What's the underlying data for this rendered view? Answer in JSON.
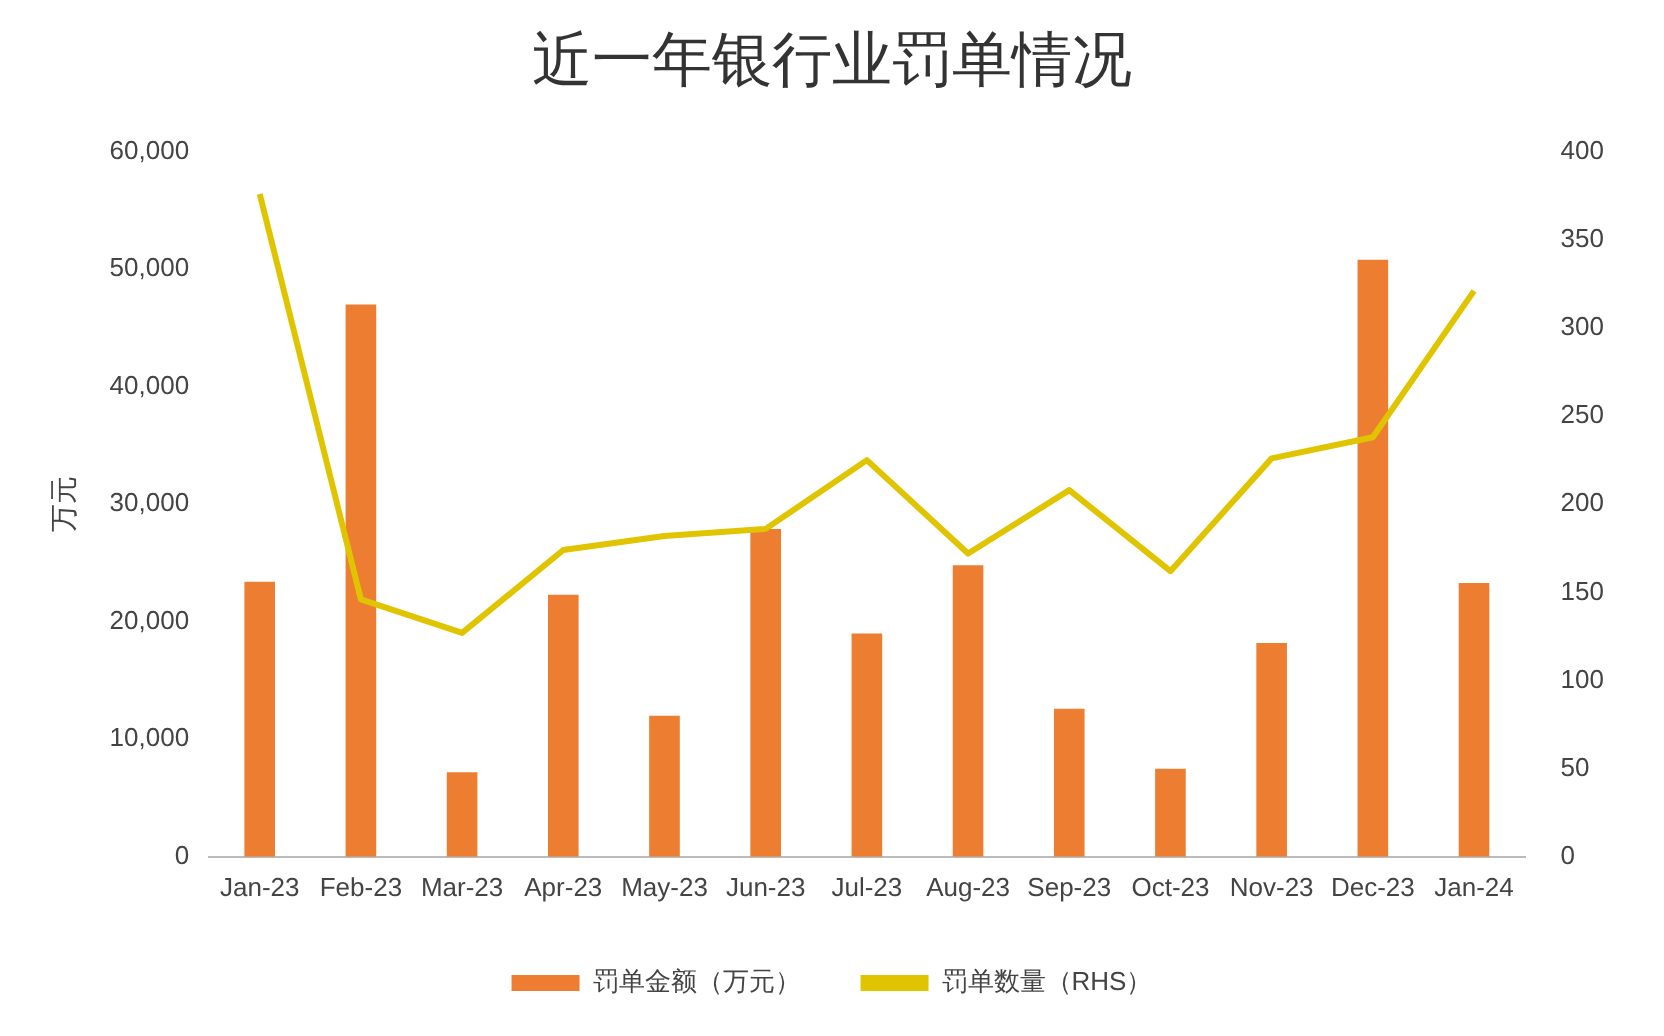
{
  "chart_data": {
    "type": "bar",
    "title": "近一年银行业罚单情况",
    "ylabel": "万元",
    "categories": [
      "Jan-23",
      "Feb-23",
      "Mar-23",
      "Apr-23",
      "May-23",
      "Jun-23",
      "Jul-23",
      "Aug-23",
      "Sep-23",
      "Oct-23",
      "Nov-23",
      "Dec-23",
      "Jan-24"
    ],
    "series": [
      {
        "name": "罚单金额（万元）",
        "color": "#ed7d31",
        "values": [
          23400,
          47000,
          7200,
          22300,
          12000,
          27900,
          19000,
          24800,
          12600,
          7500,
          18200,
          50800,
          23300
        ]
      },
      {
        "name": "罚单数量（RHS）",
        "type": "line",
        "axis": "y2",
        "color": "#e0c400",
        "values": [
          376,
          146,
          127,
          174,
          182,
          186,
          225,
          172,
          208,
          162,
          226,
          238,
          321
        ]
      }
    ],
    "ylim": [
      0,
      60000
    ],
    "yticks": [
      {
        "value": 0,
        "label": "0"
      },
      {
        "value": 10000,
        "label": "10,000"
      },
      {
        "value": 20000,
        "label": "20,000"
      },
      {
        "value": 30000,
        "label": "30,000"
      },
      {
        "value": 40000,
        "label": "40,000"
      },
      {
        "value": 50000,
        "label": "50,000"
      },
      {
        "value": 60000,
        "label": "60,000"
      }
    ],
    "y2lim": [
      0,
      400
    ],
    "y2ticks": [
      0,
      50,
      100,
      150,
      200,
      250,
      300,
      350,
      400
    ],
    "grid": false,
    "legend": "bottom",
    "marker": "none",
    "line_style": "solid"
  }
}
